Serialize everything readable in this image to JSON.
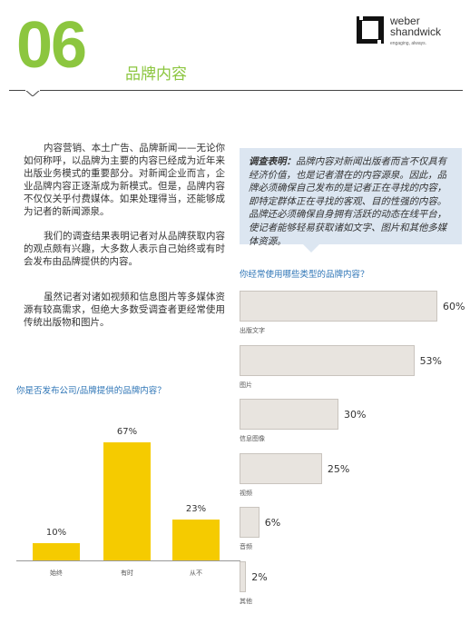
{
  "header": {
    "section_number": "06",
    "section_title": "品牌内容",
    "logo_name_line1": "weber",
    "logo_name_line2": "shandwick",
    "logo_tagline": "engaging, always."
  },
  "body": {
    "paragraph_1": "内容营销、本土广告、品牌新闻——无论你如何称呼，以品牌为主要的内容已经成为近年来出版业务模式的重要部分。对新闻企业而言，企业品牌内容正逐渐成为新模式。但是，品牌内容不仅仅关乎付费媒体。如果处理得当，还能够成为记者的新闻源泉。",
    "paragraph_2": "我们的调查结果表明记者对从品牌获取内容的观点颇有兴趣，大多数人表示自己始终或有时会发布由品牌提供的内容。",
    "paragraph_3": "虽然记者对诸如视频和信息图片等多媒体资源有较高需求，但绝大多数受调查者更经常使用传统出版物和图片。"
  },
  "callout": {
    "label": "调查表明：",
    "text": "品牌内容对新闻出版者而言不仅具有经济价值，也是记者潜在的内容源泉。因此，品牌必须确保自己发布的是记者正在寻找的内容，即特定群体正在寻找的客观、目的性强的内容。品牌还必须确保自身拥有活跃的动态在线平台，使记者能够轻易获取诸如文字、图片和其他多媒体资源。"
  },
  "chart_data": [
    {
      "type": "bar",
      "orientation": "horizontal",
      "title": "你经常使用哪些类型的品牌内容？",
      "categories": [
        "出版文字",
        "图片",
        "信息图像",
        "视频",
        "音频",
        "其他"
      ],
      "values": [
        60,
        53,
        30,
        25,
        6,
        2
      ],
      "value_labels": [
        "60%",
        "53%",
        "30%",
        "25%",
        "6%",
        "2%"
      ],
      "unit": "%",
      "bar_color": "#e8e4df",
      "grid": false
    },
    {
      "type": "bar",
      "orientation": "vertical",
      "title": "你是否发布公司/品牌提供的品牌内容？",
      "categories": [
        "始终",
        "有时",
        "从不"
      ],
      "values": [
        10,
        67,
        23
      ],
      "value_labels": [
        "10%",
        "67%",
        "23%"
      ],
      "unit": "%",
      "bar_color": "#f5cb00",
      "grid": false
    }
  ],
  "colors": {
    "accent_green": "#8cc63f",
    "chart_title_blue": "#2e75b6",
    "callout_bg": "#dce6f1"
  }
}
